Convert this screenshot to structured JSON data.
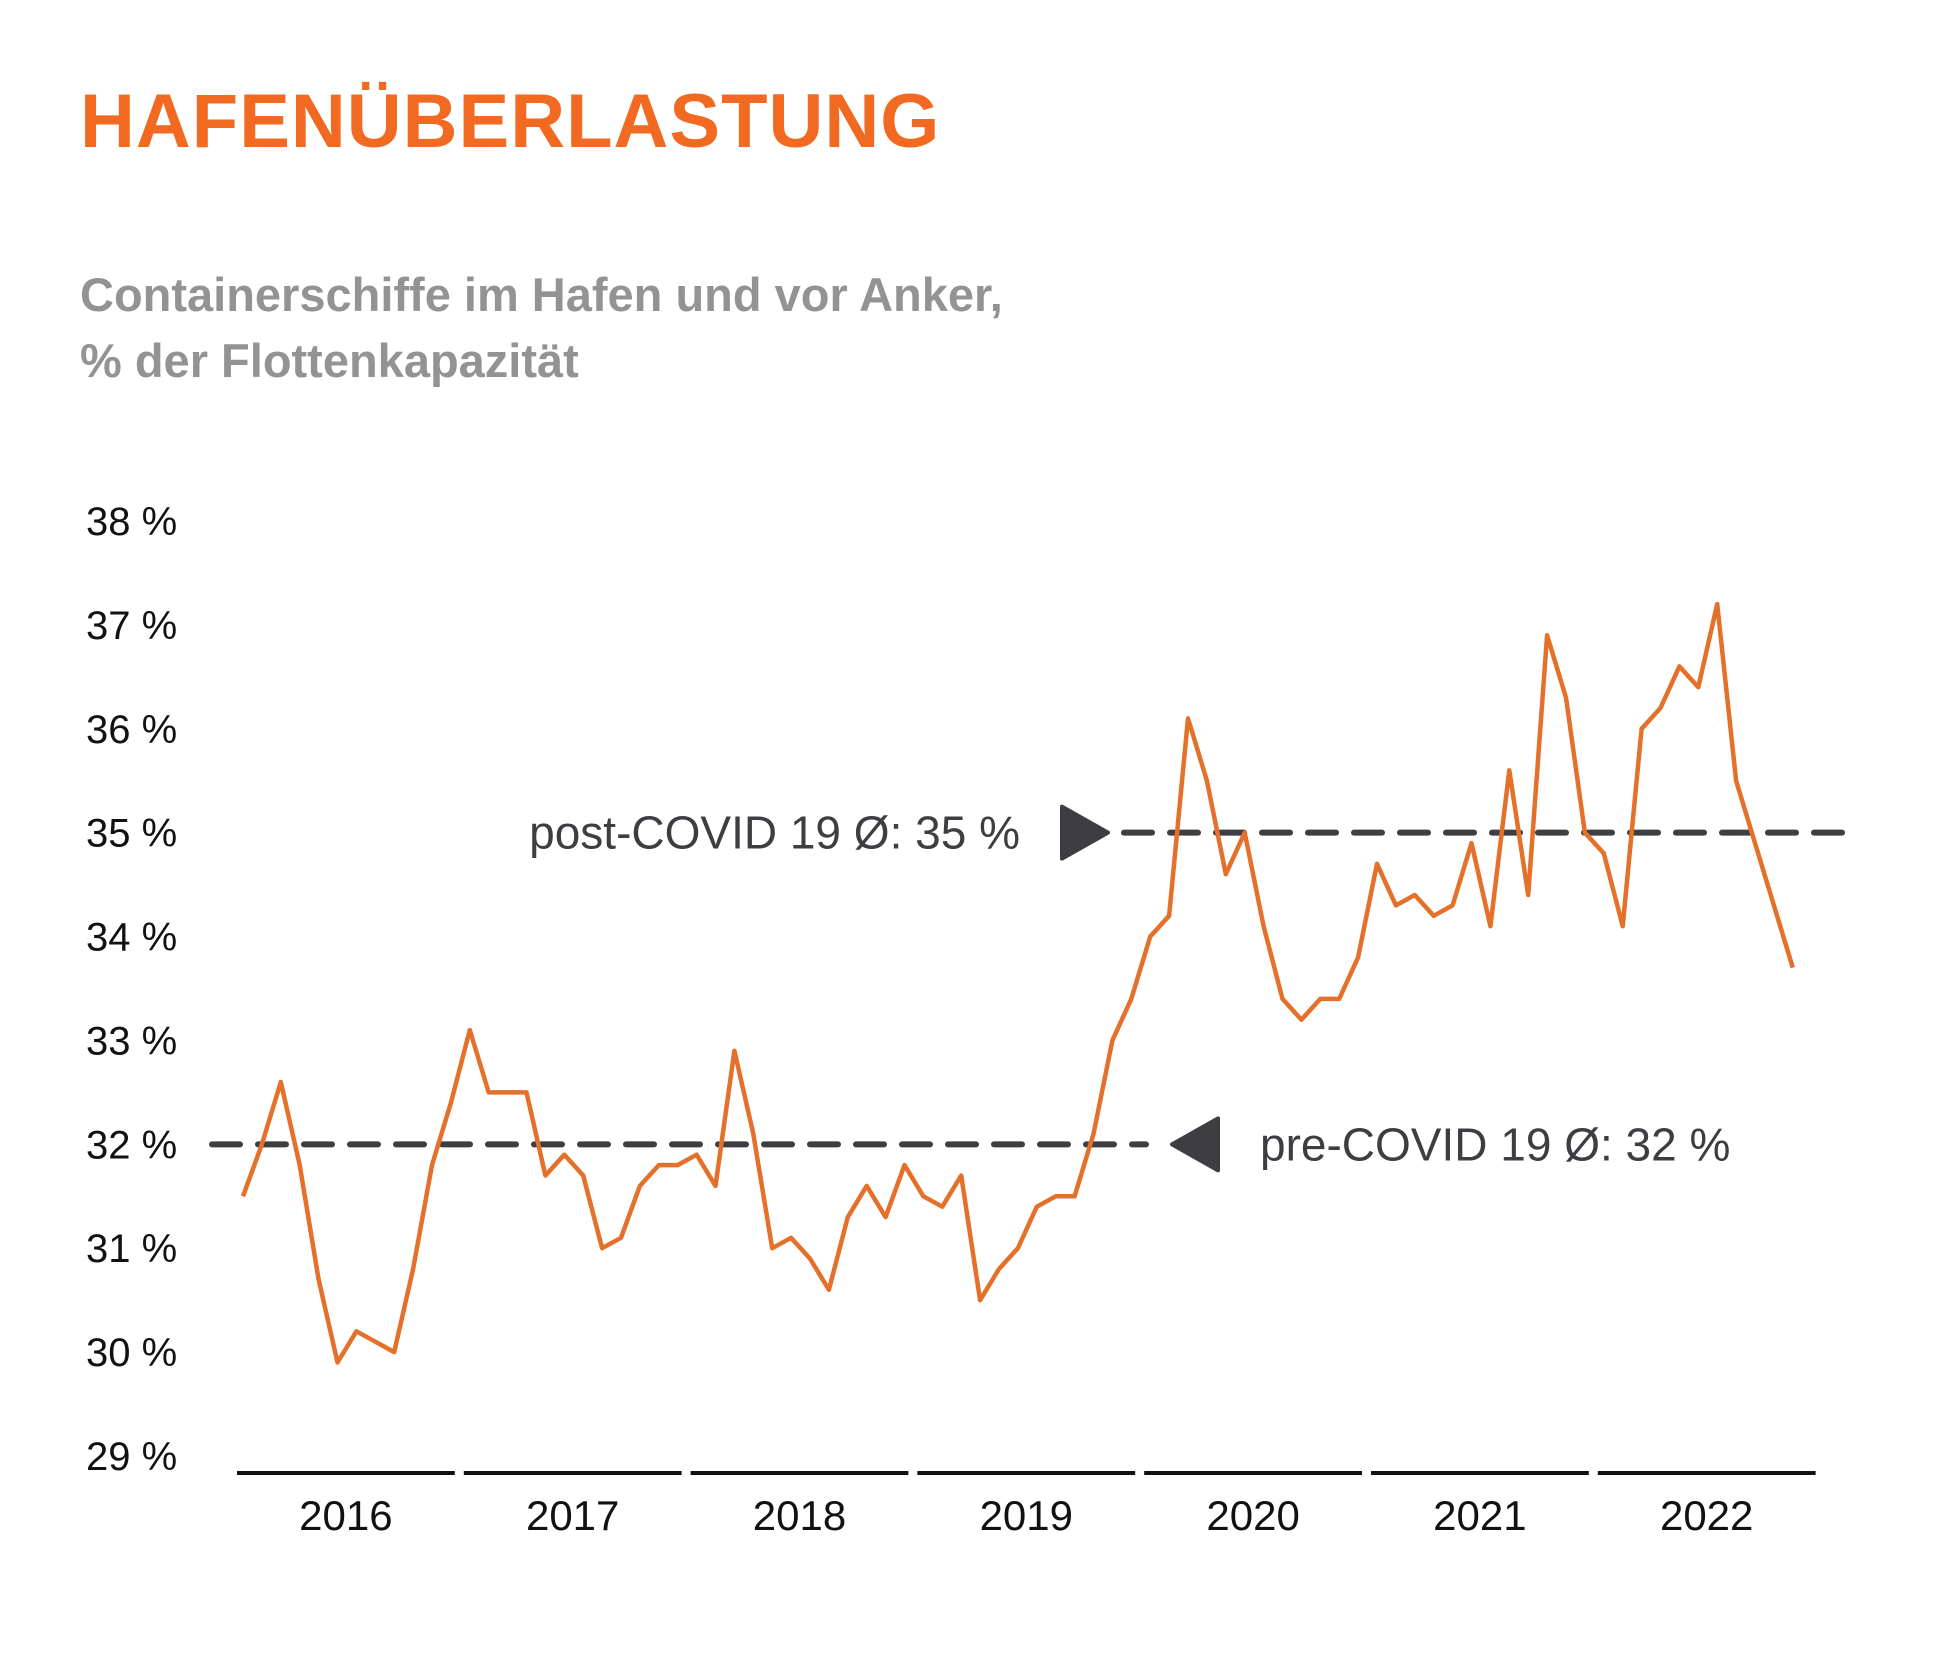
{
  "header": {
    "title": "HAFENÜBERLASTUNG",
    "subtitle_line1": "Containerschiffe im Hafen und vor Anker,",
    "subtitle_line2": "% der Flottenkapazität"
  },
  "colors": {
    "title": "#f26a21",
    "subtitle": "#939393",
    "series": "#e4702a",
    "reference": "#3e3e42",
    "axis": "#111111"
  },
  "chart_data": {
    "type": "line",
    "title": "HAFENÜBERLASTUNG",
    "subtitle": "Containerschiffe im Hafen und vor Anker, % der Flottenkapazität",
    "xlabel": "",
    "ylabel": "",
    "ylim": [
      29,
      38
    ],
    "yticks": [
      38,
      37,
      36,
      35,
      34,
      33,
      32,
      31,
      30,
      29
    ],
    "ytick_labels": [
      "38 %",
      "37 %",
      "36 %",
      "35 %",
      "34 %",
      "33 %",
      "32 %",
      "31 %",
      "30 %",
      "29 %"
    ],
    "x_categories": [
      "2016",
      "2017",
      "2018",
      "2019",
      "2020",
      "2021",
      "2022"
    ],
    "x_start_year": 2016,
    "x_frequency": "monthly",
    "grid": false,
    "series": [
      {
        "name": "Containerschiffe im Hafen und vor Anker (% der Flottenkapazität)",
        "values": [
          31.5,
          32.0,
          32.6,
          31.8,
          30.7,
          29.9,
          30.2,
          30.1,
          30.0,
          30.8,
          31.8,
          32.4,
          33.1,
          32.5,
          32.5,
          32.5,
          31.7,
          31.9,
          31.7,
          31.0,
          31.1,
          31.6,
          31.8,
          31.8,
          31.9,
          31.6,
          32.9,
          32.1,
          31.0,
          31.1,
          30.9,
          30.6,
          31.3,
          31.6,
          31.3,
          31.8,
          31.5,
          31.4,
          31.7,
          30.5,
          30.8,
          31.0,
          31.4,
          31.5,
          31.5,
          32.1,
          33.0,
          33.4,
          34.0,
          34.2,
          36.1,
          35.5,
          34.6,
          35.0,
          34.1,
          33.4,
          33.2,
          33.4,
          33.4,
          33.8,
          34.7,
          34.3,
          34.4,
          34.2,
          34.3,
          34.9,
          34.1,
          35.6,
          34.4,
          36.9,
          36.3,
          35.0,
          34.8,
          34.1,
          36.0,
          36.2,
          36.6,
          36.4,
          37.2,
          35.5,
          34.9,
          34.3,
          33.7
        ]
      }
    ],
    "reference_lines": [
      {
        "name": "post-COVID 19 average",
        "value": 35,
        "label": "post-COVID 19 Ø: 35 %",
        "marker": "triangle-right"
      },
      {
        "name": "pre-COVID 19 average",
        "value": 32,
        "label": "pre-COVID 19 Ø: 32 %",
        "marker": "triangle-left"
      }
    ]
  }
}
